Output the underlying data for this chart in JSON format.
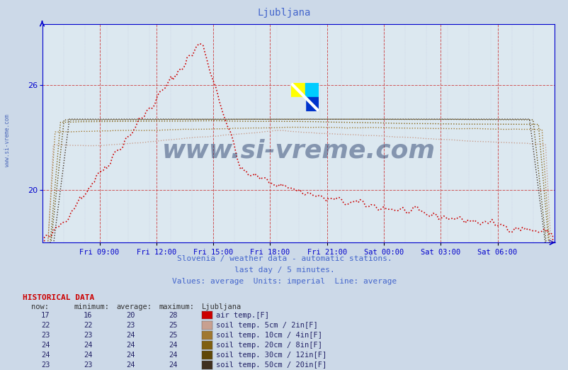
{
  "title": "Ljubljana",
  "subtitle1": "Slovenia / weather data - automatic stations.",
  "subtitle2": "last day / 5 minutes.",
  "subtitle3": "Values: average  Units: imperial  Line: average",
  "xlabel_ticks": [
    "Fri 09:00",
    "Fri 12:00",
    "Fri 15:00",
    "Fri 18:00",
    "Fri 21:00",
    "Sat 00:00",
    "Sat 03:00",
    "Sat 06:00"
  ],
  "yticks": [
    20,
    26
  ],
  "bg_color": "#ccd9e8",
  "plot_bg_color": "#dce8f0",
  "title_color": "#4466cc",
  "axis_color": "#0000cc",
  "watermark_color": "#1a3060",
  "watermark_text": "www.si-vreme.com",
  "historical_header": "HISTORICAL DATA",
  "series": [
    {
      "label": "air temp.[F]",
      "color": "#cc0000",
      "linewidth": 1.2,
      "now": 17,
      "min": 16,
      "avg": 20,
      "max": 28,
      "icon_color": "#cc0000"
    },
    {
      "label": "soil temp. 5cm / 2in[F]",
      "color": "#c8a090",
      "linewidth": 1.0,
      "now": 22,
      "min": 22,
      "avg": 23,
      "max": 25,
      "icon_color": "#c8a090"
    },
    {
      "label": "soil temp. 10cm / 4in[F]",
      "color": "#a07830",
      "linewidth": 1.0,
      "now": 23,
      "min": 23,
      "avg": 24,
      "max": 25,
      "icon_color": "#a07830"
    },
    {
      "label": "soil temp. 20cm / 8in[F]",
      "color": "#806010",
      "linewidth": 1.0,
      "now": 24,
      "min": 24,
      "avg": 24,
      "max": 24,
      "icon_color": "#806010"
    },
    {
      "label": "soil temp. 30cm / 12in[F]",
      "color": "#604808",
      "linewidth": 1.0,
      "now": 24,
      "min": 24,
      "avg": 24,
      "max": 24,
      "icon_color": "#604808"
    },
    {
      "label": "soil temp. 50cm / 20in[F]",
      "color": "#403020",
      "linewidth": 1.0,
      "now": 23,
      "min": 23,
      "avg": 24,
      "max": 24,
      "icon_color": "#403020"
    }
  ],
  "n_points": 288,
  "ymin": 17.0,
  "ymax": 29.5
}
